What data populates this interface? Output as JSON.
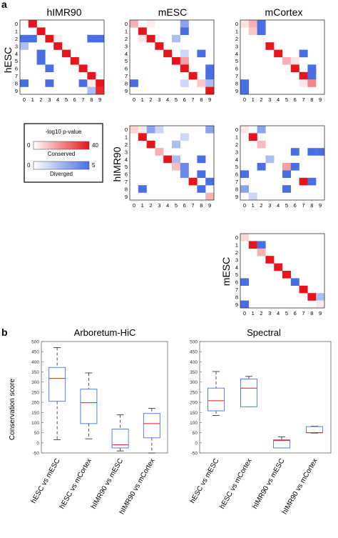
{
  "panel_a": {
    "letter": "a",
    "col_titles": [
      "hIMR90",
      "mESC",
      "mCortex"
    ],
    "row_titles": [
      "hESC",
      "hIMR90",
      "mESC"
    ],
    "legend": {
      "title": "-log10 p-value",
      "conserved_label": "Conserved",
      "conserved_min": "0",
      "conserved_max": "40",
      "diverged_label": "Diverged",
      "diverged_min": "0",
      "diverged_max": "5",
      "conserved_color": "#e8141c",
      "diverged_color": "#4a6fe3"
    },
    "tick_labels": [
      "0",
      "1",
      "2",
      "3",
      "4",
      "5",
      "6",
      "7",
      "8",
      "9"
    ]
  },
  "panel_b": {
    "letter": "b",
    "ylabel": "Conservation score",
    "yticks": [
      "-50",
      "0",
      "50",
      "100",
      "150",
      "200",
      "250",
      "300",
      "350",
      "400",
      "450",
      "500"
    ],
    "categories": [
      "hESC vs mESC",
      "hESC vs mCortex",
      "hIMR90 vs mESC",
      "hIMR90 vs mCortex"
    ],
    "left_title": "Arboretum-HiC",
    "right_title": "Spectral"
  },
  "chart_data": [
    {
      "type": "heatmap",
      "row_label": "hESC",
      "col_label": "hIMR90",
      "values": [
        [
          0,
          40,
          0,
          0,
          0,
          0,
          0,
          0,
          0,
          0
        ],
        [
          0,
          0,
          40,
          0,
          0,
          0,
          0,
          0,
          0,
          0
        ],
        [
          -5,
          -5,
          0,
          40,
          1,
          0,
          0,
          0,
          -5,
          -5
        ],
        [
          -2,
          0,
          0,
          0,
          40,
          0,
          0,
          0,
          0,
          0
        ],
        [
          0,
          0,
          -5,
          0,
          0,
          40,
          0,
          0,
          0,
          0
        ],
        [
          0,
          0,
          -5,
          0,
          0,
          0,
          40,
          0,
          0,
          0
        ],
        [
          0,
          0,
          0,
          -5,
          0,
          0,
          0,
          40,
          0,
          0
        ],
        [
          0,
          0,
          0,
          0,
          0,
          0,
          0,
          0,
          40,
          0
        ],
        [
          -5,
          0,
          0,
          -5,
          0,
          0,
          0,
          -5,
          1,
          40
        ],
        [
          0,
          0,
          0,
          0,
          0,
          0,
          0,
          0,
          -2,
          36
        ]
      ]
    },
    {
      "type": "heatmap",
      "row_label": "hESC",
      "col_label": "mESC",
      "values": [
        [
          12,
          0,
          1,
          0,
          0,
          0,
          -3,
          0,
          0,
          0
        ],
        [
          0,
          40,
          0,
          0,
          0,
          0,
          -5,
          0,
          0,
          0
        ],
        [
          0,
          2,
          40,
          0,
          0,
          -2,
          0,
          0,
          0,
          0
        ],
        [
          0,
          0,
          0,
          40,
          0,
          0,
          0,
          0,
          0,
          0
        ],
        [
          0,
          0,
          0,
          0,
          40,
          0,
          -1,
          0,
          -5,
          0
        ],
        [
          0,
          0,
          0,
          0,
          0,
          40,
          15,
          0,
          0,
          0
        ],
        [
          0,
          0,
          0,
          0,
          0,
          0,
          40,
          0,
          0,
          -5
        ],
        [
          0,
          0,
          0,
          0,
          0,
          0,
          0,
          40,
          0,
          -5
        ],
        [
          -5,
          0,
          0,
          0,
          0,
          0,
          -1,
          0,
          8,
          -2
        ],
        [
          0,
          0,
          0,
          0,
          0,
          0,
          0,
          0,
          0,
          40
        ]
      ]
    },
    {
      "type": "heatmap",
      "row_label": "hESC",
      "col_label": "mCortex",
      "values": [
        [
          3,
          12,
          -5,
          0,
          0,
          0,
          0,
          0,
          0,
          0
        ],
        [
          0,
          8,
          -5,
          0,
          0,
          0,
          0,
          0,
          0,
          0
        ],
        [
          0,
          0,
          0,
          0,
          0,
          0,
          0,
          0,
          0,
          0
        ],
        [
          0,
          0,
          0,
          40,
          0,
          0,
          0,
          0,
          0,
          0
        ],
        [
          0,
          0,
          0,
          0,
          40,
          0,
          0,
          -5,
          0,
          0
        ],
        [
          0,
          0,
          0,
          0,
          0,
          12,
          3,
          0,
          0,
          0
        ],
        [
          0,
          0,
          0,
          0,
          0,
          0,
          40,
          0,
          -5,
          0
        ],
        [
          0,
          0,
          0,
          0,
          0,
          0,
          0,
          40,
          -5,
          0
        ],
        [
          -5,
          0,
          0,
          0,
          0,
          0,
          0,
          2,
          20,
          0
        ],
        [
          -5,
          0,
          0,
          0,
          0,
          0,
          0,
          0,
          0,
          0
        ]
      ]
    },
    {
      "type": "heatmap",
      "row_label": "hIMR90",
      "col_label": "mESC",
      "values": [
        [
          6,
          2,
          -3,
          -1,
          0,
          0,
          0,
          0,
          0,
          -3
        ],
        [
          0,
          40,
          0,
          0,
          0,
          0,
          -1,
          0,
          0,
          0
        ],
        [
          0,
          0,
          40,
          0,
          0,
          -2,
          0,
          0,
          0,
          0
        ],
        [
          0,
          0,
          0,
          12,
          0,
          0,
          0,
          0,
          0,
          0
        ],
        [
          0,
          0,
          0,
          0,
          40,
          -2,
          0,
          0,
          -5,
          0
        ],
        [
          0,
          0,
          0,
          0,
          0,
          10,
          -4,
          0,
          0,
          0
        ],
        [
          0,
          0,
          0,
          0,
          0,
          0,
          -4,
          0,
          -5,
          0
        ],
        [
          0,
          0,
          0,
          0,
          0,
          0,
          0,
          40,
          0,
          -5
        ],
        [
          0,
          -5,
          0,
          0,
          0,
          0,
          0,
          0,
          -5,
          0
        ],
        [
          0,
          0,
          0,
          0,
          0,
          0,
          0,
          0,
          0,
          12
        ]
      ]
    },
    {
      "type": "heatmap",
      "row_label": "hIMR90",
      "col_label": "mCortex",
      "values": [
        [
          2,
          0,
          -3,
          0,
          0,
          0,
          0,
          0,
          0,
          0
        ],
        [
          0,
          40,
          0,
          0,
          0,
          0,
          0,
          0,
          0,
          0
        ],
        [
          0,
          0,
          10,
          0,
          0,
          0,
          0,
          0,
          0,
          0
        ],
        [
          0,
          0,
          0,
          0,
          0,
          0,
          -5,
          0,
          -5,
          -5
        ],
        [
          0,
          0,
          0,
          -2,
          0,
          0,
          0,
          0,
          0,
          0
        ],
        [
          0,
          0,
          -5,
          0,
          0,
          15,
          -5,
          0,
          0,
          0
        ],
        [
          -5,
          0,
          0,
          0,
          0,
          -5,
          0,
          0,
          0,
          0
        ],
        [
          0,
          0,
          0,
          0,
          0,
          0,
          0,
          40,
          -5,
          0
        ],
        [
          -3,
          0,
          0,
          0,
          0,
          -5,
          0,
          0,
          0,
          0
        ],
        [
          0,
          -1,
          0,
          0,
          0,
          0,
          0,
          0,
          0,
          0
        ]
      ]
    },
    {
      "type": "heatmap",
      "row_label": "mESC",
      "col_label": "mCortex",
      "values": [
        [
          5,
          0,
          0,
          0,
          0,
          0,
          0,
          0,
          0,
          0
        ],
        [
          0,
          40,
          -5,
          0,
          0,
          0,
          0,
          0,
          0,
          0
        ],
        [
          0,
          0,
          12,
          0,
          0,
          0,
          0,
          0,
          0,
          0
        ],
        [
          0,
          0,
          0,
          40,
          0,
          0,
          0,
          0,
          0,
          0
        ],
        [
          0,
          0,
          0,
          0,
          40,
          0,
          0,
          0,
          0,
          0
        ],
        [
          0,
          0,
          0,
          0,
          0,
          40,
          0,
          0,
          0,
          0
        ],
        [
          -5,
          0,
          0,
          0,
          0,
          0,
          -5,
          0,
          0,
          0
        ],
        [
          0,
          0,
          0,
          0,
          0,
          0,
          0,
          40,
          0,
          0
        ],
        [
          0,
          0,
          0,
          0,
          0,
          0,
          0,
          0,
          40,
          -2
        ],
        [
          -5,
          0,
          0,
          0,
          0,
          0,
          0,
          0,
          0,
          2
        ]
      ]
    },
    {
      "type": "box",
      "title": "Arboretum-HiC",
      "ylabel": "Conservation score",
      "ylim": [
        -50,
        500
      ],
      "categories": [
        "hESC vs mESC",
        "hESC vs mCortex",
        "hIMR90 vs mESC",
        "hIMR90 vs mCortex"
      ],
      "boxes": [
        {
          "whisker_low": 15,
          "q1": 205,
          "median": 318,
          "q3": 372,
          "whisker_high": 470
        },
        {
          "whisker_low": 20,
          "q1": 95,
          "median": 198,
          "q3": 265,
          "whisker_high": 345
        },
        {
          "whisker_low": -40,
          "q1": -25,
          "median": -10,
          "q3": 68,
          "whisker_high": 138
        },
        {
          "whisker_low": -50,
          "q1": 25,
          "median": 95,
          "q3": 145,
          "whisker_high": 170
        }
      ]
    },
    {
      "type": "box",
      "title": "Spectral",
      "ylim": [
        -50,
        500
      ],
      "categories": [
        "hESC vs mESC",
        "hESC vs mCortex",
        "hIMR90 vs mESC",
        "hIMR90 vs mCortex"
      ],
      "boxes": [
        {
          "whisker_low": 135,
          "q1": 158,
          "median": 208,
          "q3": 270,
          "whisker_high": 352
        },
        {
          "whisker_low": 178,
          "q1": 178,
          "median": 270,
          "q3": 315,
          "whisker_high": 328
        },
        {
          "whisker_low": -25,
          "q1": -25,
          "median": 12,
          "q3": 15,
          "whisker_high": 30
        },
        {
          "whisker_low": 48,
          "q1": 50,
          "median": 50,
          "q3": 80,
          "whisker_high": 82
        }
      ]
    }
  ]
}
